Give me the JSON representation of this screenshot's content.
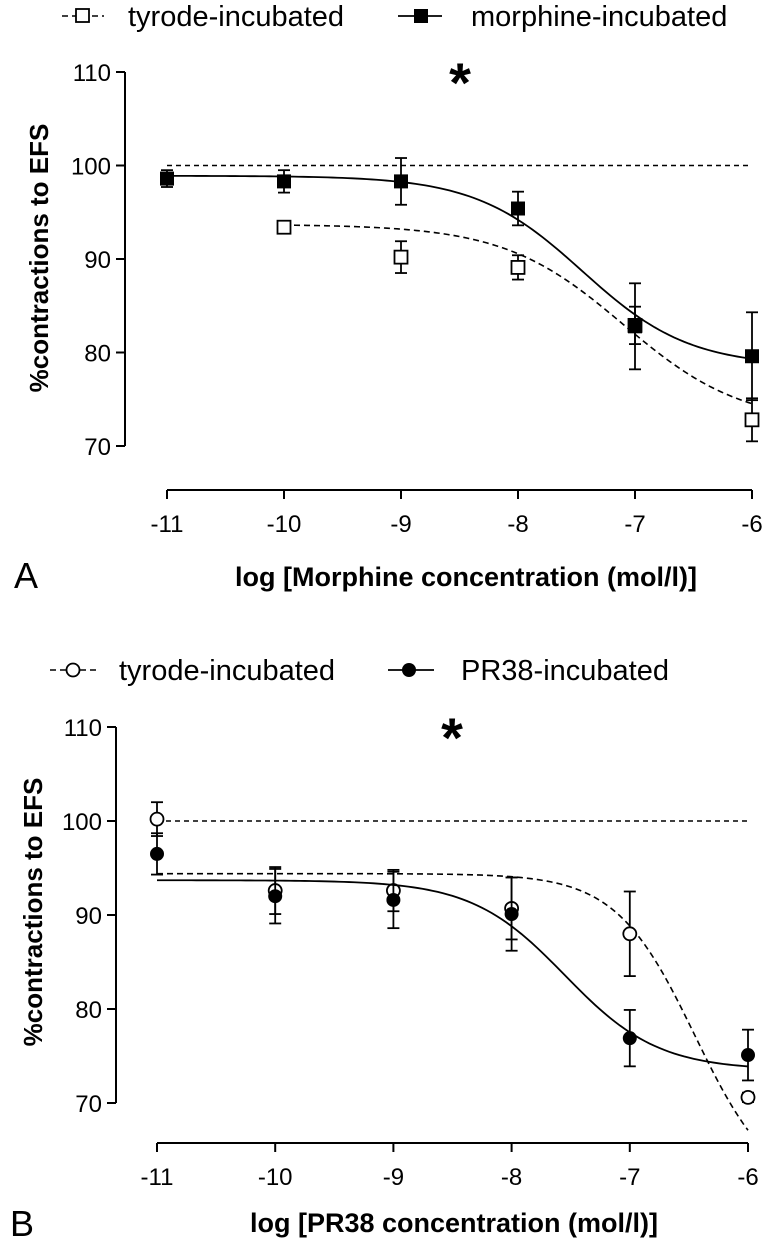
{
  "chart_data": [
    {
      "panel_label": "A",
      "type": "scatter",
      "xlabel": "log [Morphine concentration (mol/l)]",
      "ylabel": "%contractions to EFS",
      "xlim": [
        -11,
        -6
      ],
      "ylim": [
        70,
        110
      ],
      "xticks": [
        "-11",
        "-10",
        "-9",
        "-8",
        "-7",
        "-6"
      ],
      "yticks": [
        "70",
        "80",
        "90",
        "100",
        "110"
      ],
      "reference_line": 100,
      "annotation": "*",
      "series": [
        {
          "name": "tyrode-incubated",
          "marker": "open-square",
          "line": "dashed",
          "x": [
            -10,
            -9,
            -8,
            -7,
            -6
          ],
          "y": [
            93.4,
            90.2,
            89.1,
            82.9,
            72.8
          ],
          "err": [
            0.4,
            1.7,
            1.3,
            2.0,
            2.3
          ],
          "fit": {
            "top": 93.7,
            "bottom": 72.3,
            "logEC50": -7.1,
            "hill": 0.85
          }
        },
        {
          "name": "morphine-incubated",
          "marker": "filled-square",
          "line": "solid",
          "x": [
            -11,
            -10,
            -9,
            -8,
            -7,
            -6
          ],
          "y": [
            98.6,
            98.3,
            98.3,
            95.4,
            82.8,
            79.6
          ],
          "err": [
            0.9,
            1.2,
            2.5,
            1.8,
            4.6,
            4.7
          ],
          "fit": {
            "top": 98.9,
            "bottom": 78.5,
            "logEC50": -7.45,
            "hill": 0.95
          }
        }
      ]
    },
    {
      "panel_label": "B",
      "type": "scatter",
      "xlabel": "log [PR38 concentration (mol/l)]",
      "ylabel": "%contractions to EFS",
      "xlim": [
        -11,
        -6
      ],
      "ylim": [
        70,
        110
      ],
      "xticks": [
        "-11",
        "-10",
        "-9",
        "-8",
        "-7",
        "-6"
      ],
      "yticks": [
        "70",
        "80",
        "90",
        "100",
        "110"
      ],
      "reference_line": 100,
      "annotation": "*",
      "series": [
        {
          "name": "tyrode-incubated",
          "marker": "open-circle",
          "line": "dashed",
          "x": [
            -11,
            -10,
            -9,
            -8,
            -7,
            -6
          ],
          "y": [
            100.2,
            92.6,
            92.6,
            90.7,
            88.0,
            70.6
          ],
          "err": [
            1.8,
            2.5,
            2.2,
            3.3,
            4.5,
            0.5
          ],
          "fit": {
            "top": 94.4,
            "bottom": 60.0,
            "logEC50": -6.45,
            "hill": 1.3
          }
        },
        {
          "name": "PR38-incubated",
          "marker": "filled-circle",
          "line": "solid",
          "x": [
            -11,
            -10,
            -9,
            -8,
            -7,
            -6
          ],
          "y": [
            96.5,
            92.0,
            91.6,
            90.1,
            76.9,
            75.1
          ],
          "err": [
            2.2,
            2.9,
            3.0,
            3.9,
            3.0,
            2.7
          ],
          "fit": {
            "top": 93.7,
            "bottom": 73.5,
            "logEC50": -7.55,
            "hill": 1.1
          }
        }
      ]
    }
  ]
}
